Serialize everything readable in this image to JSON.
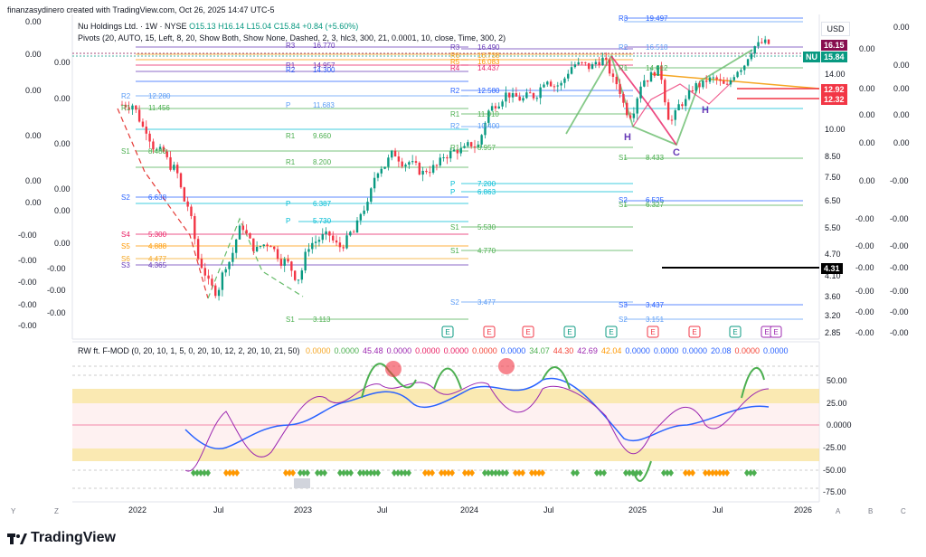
{
  "credit": "finanzasydinero created with TradingView.com, Oct 26, 2025 14:47 UTC-5",
  "legend": {
    "line1_prefix": "Nu Holdings Ltd. · 1W · NYSE",
    "open": "O15.13",
    "high": "H16.14",
    "low": "L15.04",
    "close": "C15.84",
    "change": "+0.84 (+5.60%)",
    "line2": "Pivots (20, AUTO, 15, Left, 8, 20, Show Both, Show None, Dashed, 2, 3, hlc3, 300, 21, 0.0001, 10, close, Time, 300, 2)"
  },
  "currency": "USD",
  "price_tags": [
    {
      "label": "16.15",
      "color": "#880e4f",
      "y": 16.15
    },
    {
      "label": "15.84",
      "color": "#089981",
      "y": 15.84,
      "prefix": "NU"
    },
    {
      "label": "12.92",
      "color": "#f23645",
      "y": 12.92
    },
    {
      "label": "12.32",
      "color": "#f23645",
      "y": 12.32
    },
    {
      "label": "4.31",
      "color": "#000000",
      "y": 4.31
    }
  ],
  "price_axis": [
    "14.00",
    "10.00",
    "8.50",
    "7.50",
    "6.50",
    "5.50",
    "4.70",
    "4.10",
    "3.60",
    "3.20",
    "2.85"
  ],
  "left_axis": [
    "0.00",
    "0.00",
    "0.00",
    "0.00",
    "0.00",
    "0.00",
    "-0.00",
    "-0.00",
    "-0.00",
    "-0.00",
    "-0.00",
    "-0.00",
    "-0.00"
  ],
  "right_axis_a": [
    "0.00",
    "0.00",
    "0.00",
    "0.00",
    "0.00",
    "-0.00",
    "-0.00",
    "-0.00",
    "-0.00",
    "-0.00",
    "-0.00",
    "-0.00",
    "-0.00"
  ],
  "right_axis_b": [
    "0.00",
    "0.00",
    "0.00",
    "0.00",
    "0.00",
    "-0.00",
    "-0.00",
    "-0.00",
    "-0.00",
    "-0.00",
    "-0.00",
    "-0.00",
    "-0.00"
  ],
  "time_axis": [
    "2022",
    "Jul",
    "2023",
    "Jul",
    "2024",
    "Jul",
    "2025",
    "Jul",
    "2026"
  ],
  "corner_letters": [
    "Y",
    "Z",
    "A",
    "B",
    "C"
  ],
  "pivot_labels": [
    {
      "label": "R3",
      "value": "16.770"
    },
    {
      "label": "R2",
      "value": "14.300"
    },
    {
      "label": "R1",
      "value": "14.957"
    },
    {
      "label": "P",
      "value": "11.683"
    },
    {
      "label": "R1",
      "value": "9.660"
    },
    {
      "label": "R1",
      "value": "8.200"
    },
    {
      "label": "P",
      "value": "6.387"
    },
    {
      "label": "P",
      "value": "5.730"
    },
    {
      "label": "S4",
      "value": "5.300"
    },
    {
      "label": "S5",
      "value": "4.888"
    },
    {
      "label": "S6",
      "value": "4.477"
    },
    {
      "label": "S3",
      "value": "4.365"
    },
    {
      "label": "S1",
      "value": "3.113"
    },
    {
      "label": "R3",
      "value": "16.490"
    },
    {
      "label": "R6",
      "value": "16.738"
    },
    {
      "label": "R5",
      "value": "16.083"
    },
    {
      "label": "R4",
      "value": "14.437"
    },
    {
      "label": "R2",
      "value": "12.580"
    },
    {
      "label": "R1",
      "value": "11.010"
    },
    {
      "label": "R2",
      "value": "10.400"
    },
    {
      "label": "R1",
      "value": "8.957"
    },
    {
      "label": "P",
      "value": "7.200"
    },
    {
      "label": "P",
      "value": "6.863"
    },
    {
      "label": "S1",
      "value": "5.530"
    },
    {
      "label": "S1",
      "value": "4.770"
    },
    {
      "label": "S2",
      "value": "3.477"
    },
    {
      "label": "R3",
      "value": "19.497"
    },
    {
      "label": "R2",
      "value": "16.518"
    },
    {
      "label": "R1",
      "value": "14.612"
    },
    {
      "label": "S1",
      "value": "8.433"
    },
    {
      "label": "S2",
      "value": "6.525"
    },
    {
      "label": "S1",
      "value": "6.327"
    },
    {
      "label": "S3",
      "value": "3.437"
    },
    {
      "label": "S2",
      "value": "3.151"
    },
    {
      "label": "R2",
      "value": "12.280"
    },
    {
      "label": "R1",
      "value": "11.456"
    },
    {
      "label": "S1",
      "value": "8.480"
    },
    {
      "label": "S2",
      "value": "6.638"
    }
  ],
  "pattern_labels": [
    "H",
    "C",
    "H"
  ],
  "oscillator": {
    "title": "RW ft. F-MOD (0, 20, 10, 1, 5, 0, 20, 10, 12, 2, 20, 10, 21, 50)",
    "values": [
      {
        "v": "0.0000",
        "color": "#f5a623"
      },
      {
        "v": "0.0000",
        "color": "#4caf50"
      },
      {
        "v": "45.48",
        "color": "#9c27b0"
      },
      {
        "v": "0.0000",
        "color": "#9c27b0"
      },
      {
        "v": "0.0000",
        "color": "#e91e63"
      },
      {
        "v": "0.0000",
        "color": "#e91e63"
      },
      {
        "v": "0.0000",
        "color": "#f44336"
      },
      {
        "v": "0.0000",
        "color": "#2962ff"
      },
      {
        "v": "34.07",
        "color": "#4caf50"
      },
      {
        "v": "44.30",
        "color": "#f44336"
      },
      {
        "v": "42.69",
        "color": "#9c27b0"
      },
      {
        "v": "42.04",
        "color": "#ff9800"
      },
      {
        "v": "0.0000",
        "color": "#2962ff"
      },
      {
        "v": "0.0000",
        "color": "#2962ff"
      },
      {
        "v": "0.0000",
        "color": "#2962ff"
      },
      {
        "v": "20.08",
        "color": "#2962ff"
      },
      {
        "v": "0.0000",
        "color": "#f44336"
      },
      {
        "v": "0.0000",
        "color": "#2962ff"
      }
    ],
    "axis": [
      "50.00",
      "25.00",
      "0.0000",
      "-25.00",
      "-50.00",
      "-75.00"
    ]
  },
  "chart_data": {
    "type": "line",
    "subtype": "candlestick",
    "symbol": "Nu Holdings Ltd.",
    "interval": "1W",
    "exchange": "NYSE",
    "y_scale": "log",
    "ylim": [
      2.85,
      20
    ],
    "x_range": [
      "2021-12",
      "2026-01"
    ],
    "candles_close_approx": [
      {
        "x": "2021-12",
        "y": 11.0
      },
      {
        "x": "2022-01",
        "y": 9.5
      },
      {
        "x": "2022-02",
        "y": 8.3
      },
      {
        "x": "2022-03",
        "y": 7.5
      },
      {
        "x": "2022-04",
        "y": 6.0
      },
      {
        "x": "2022-05",
        "y": 4.2
      },
      {
        "x": "2022-06",
        "y": 3.6
      },
      {
        "x": "2022-07",
        "y": 4.3
      },
      {
        "x": "2022-08",
        "y": 5.3
      },
      {
        "x": "2022-09",
        "y": 4.6
      },
      {
        "x": "2022-10",
        "y": 4.8
      },
      {
        "x": "2022-11",
        "y": 4.3
      },
      {
        "x": "2022-12",
        "y": 3.9
      },
      {
        "x": "2023-01",
        "y": 4.8
      },
      {
        "x": "2023-02",
        "y": 5.0
      },
      {
        "x": "2023-03",
        "y": 4.7
      },
      {
        "x": "2023-04",
        "y": 5.1
      },
      {
        "x": "2023-05",
        "y": 6.0
      },
      {
        "x": "2023-06",
        "y": 7.6
      },
      {
        "x": "2023-07",
        "y": 8.2
      },
      {
        "x": "2023-08",
        "y": 7.8
      },
      {
        "x": "2023-09",
        "y": 7.3
      },
      {
        "x": "2023-10",
        "y": 7.6
      },
      {
        "x": "2023-11",
        "y": 8.2
      },
      {
        "x": "2023-12",
        "y": 8.4
      },
      {
        "x": "2024-01",
        "y": 8.6
      },
      {
        "x": "2024-02",
        "y": 10.8
      },
      {
        "x": "2024-03",
        "y": 11.7
      },
      {
        "x": "2024-04",
        "y": 11.4
      },
      {
        "x": "2024-05",
        "y": 11.6
      },
      {
        "x": "2024-06",
        "y": 12.9
      },
      {
        "x": "2024-07",
        "y": 12.4
      },
      {
        "x": "2024-08",
        "y": 14.0
      },
      {
        "x": "2024-09",
        "y": 13.8
      },
      {
        "x": "2024-10",
        "y": 14.4
      },
      {
        "x": "2024-11",
        "y": 12.5
      },
      {
        "x": "2024-12",
        "y": 10.4
      },
      {
        "x": "2025-01",
        "y": 12.8
      },
      {
        "x": "2025-02",
        "y": 13.5
      },
      {
        "x": "2025-03",
        "y": 10.0
      },
      {
        "x": "2025-04",
        "y": 11.2
      },
      {
        "x": "2025-05",
        "y": 12.4
      },
      {
        "x": "2025-06",
        "y": 12.8
      },
      {
        "x": "2025-07",
        "y": 12.2
      },
      {
        "x": "2025-08",
        "y": 13.8
      },
      {
        "x": "2025-09",
        "y": 15.6
      },
      {
        "x": "2025-10",
        "y": 15.84
      }
    ]
  }
}
